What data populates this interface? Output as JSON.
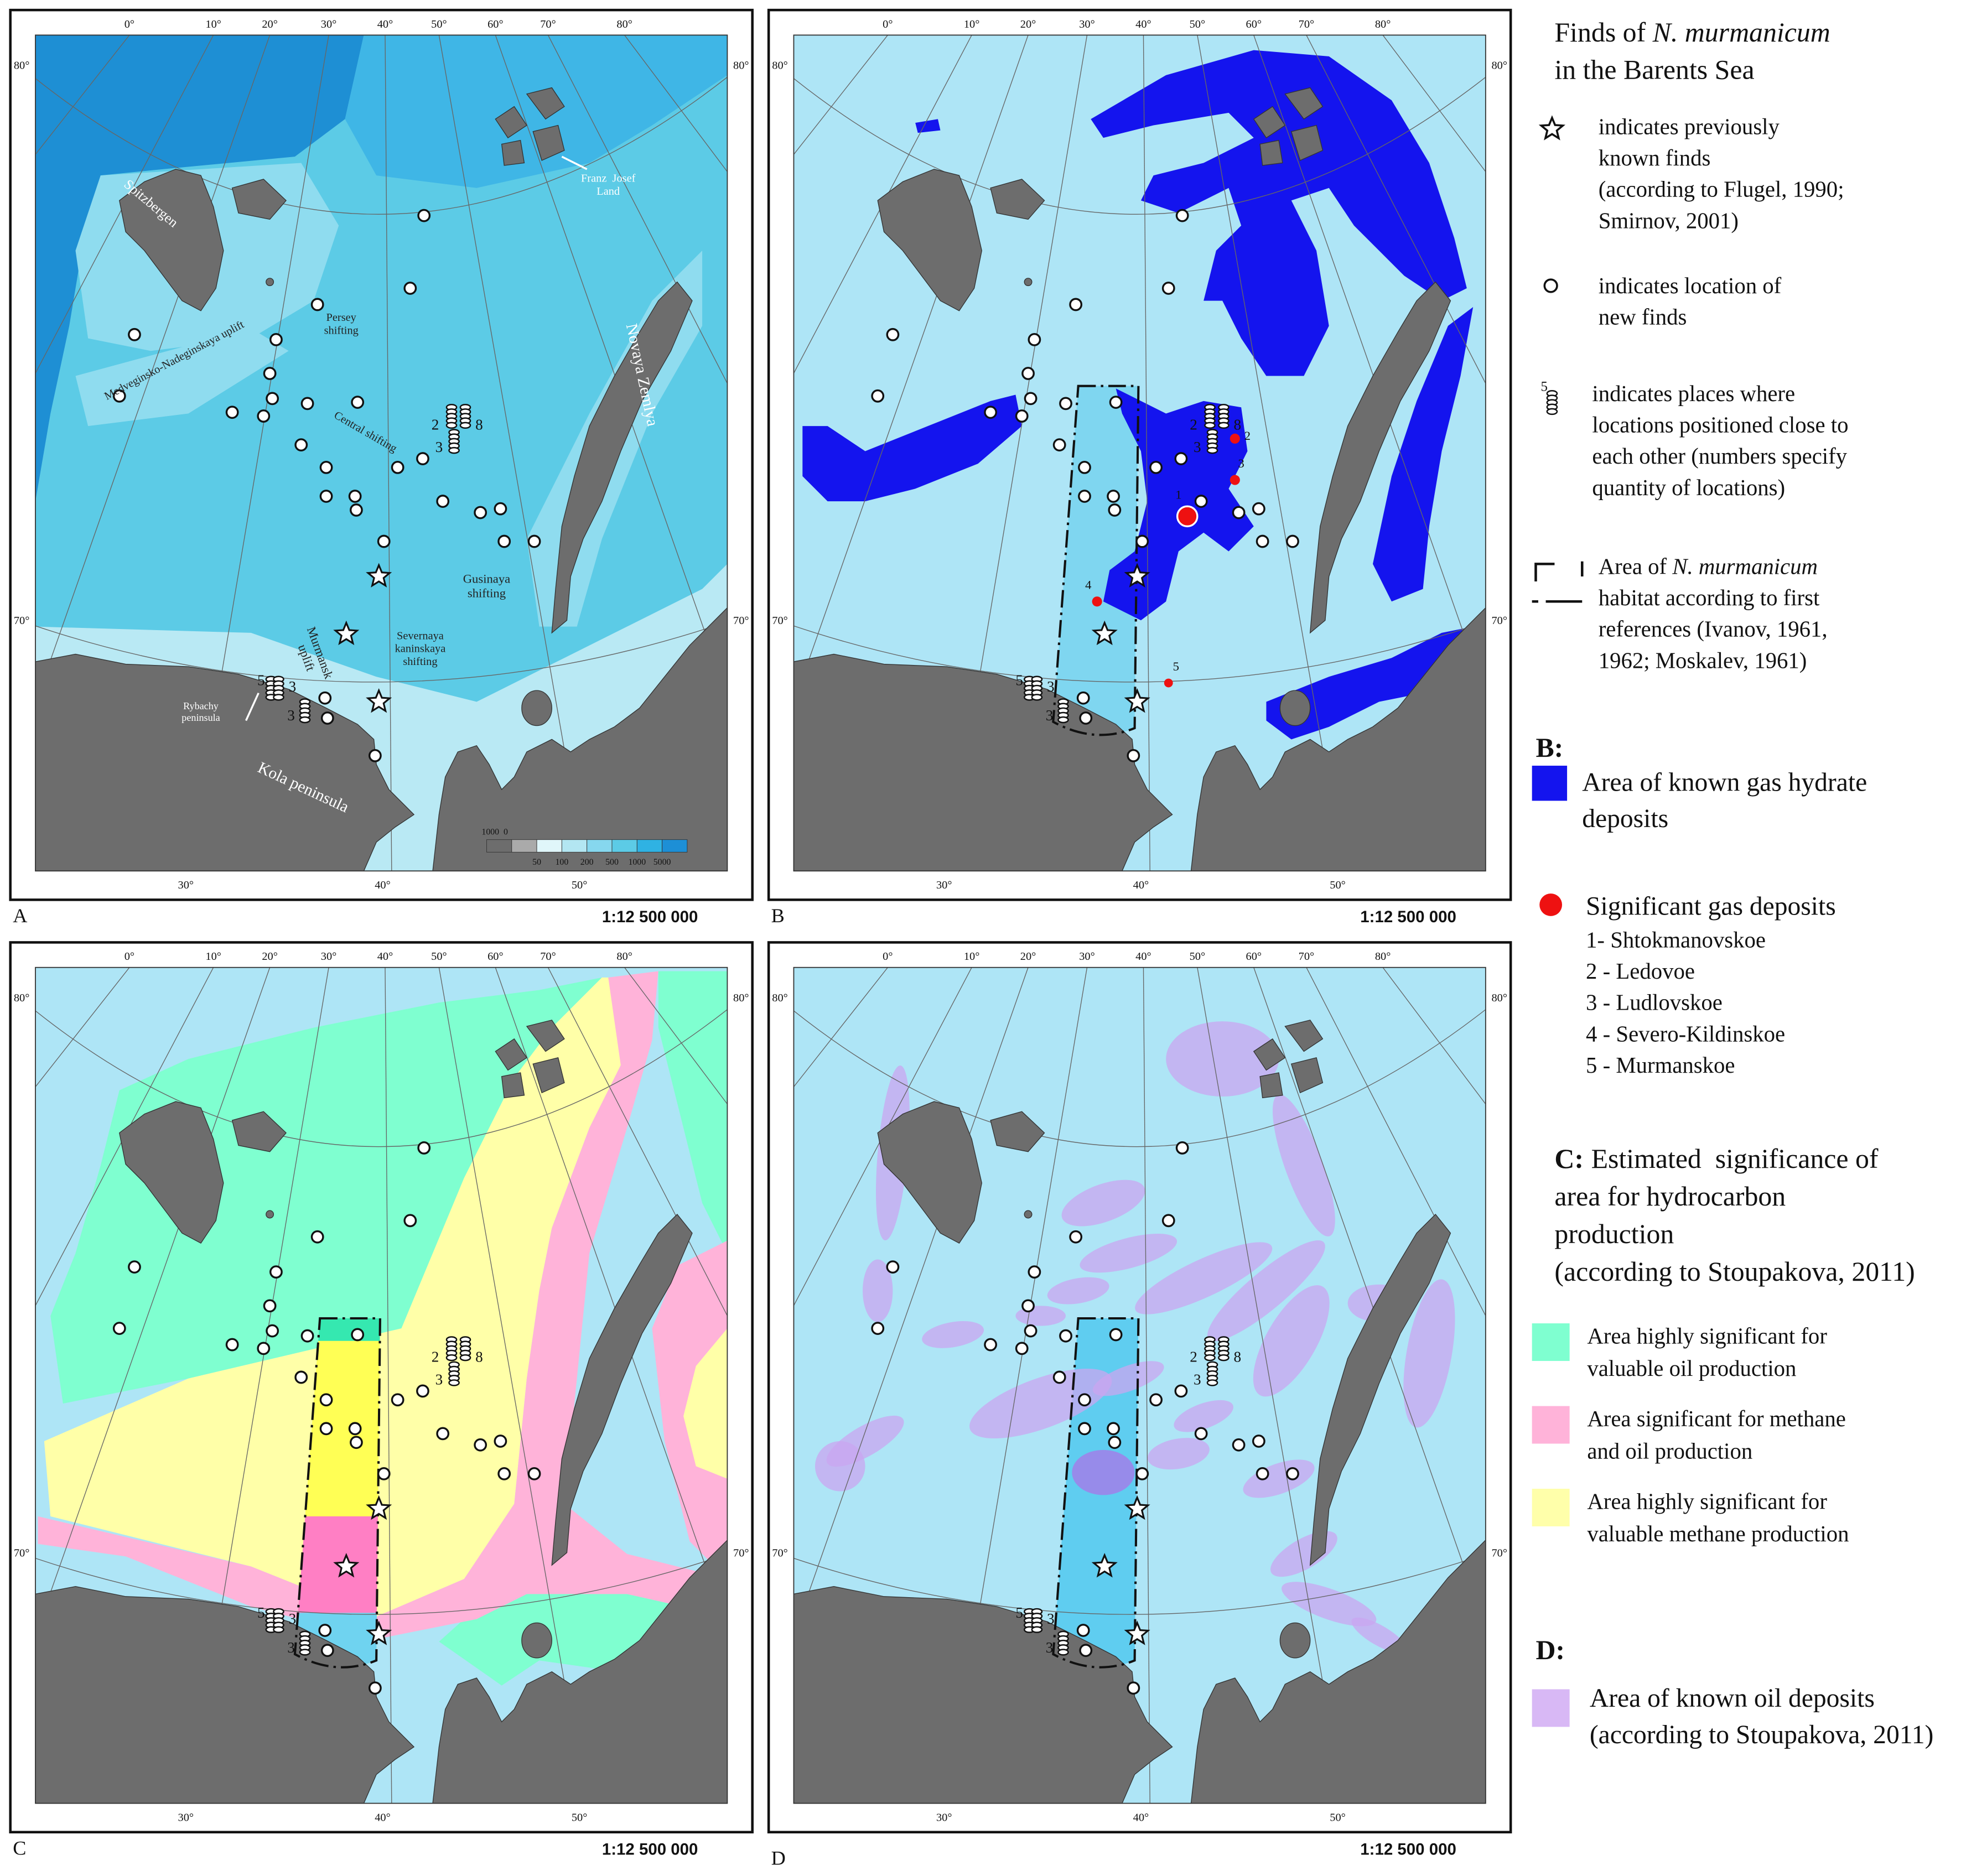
{
  "legend": {
    "title": [
      "Finds of ",
      "N. murmanicum",
      "in the Barents Sea"
    ],
    "star": [
      "indicates previously",
      "known finds",
      "(according to Flugel, 1990;",
      "Smirnov, 2001)"
    ],
    "circle": [
      "indicates location of",
      "new finds"
    ],
    "stack_number": "5",
    "stack": [
      "indicates places where",
      "locations positioned close to",
      "each other (numbers specify",
      "quantity of locations)"
    ],
    "habitat": {
      "prefix": "Area of ",
      "species": "N. murmanicum",
      "lines": [
        "habitat according to first",
        "references (Ivanov, 1961,",
        "1962; Moskalev, 1961)"
      ]
    },
    "b_heading": "B:",
    "hydrate": [
      "Area of known gas hydrate",
      "deposits"
    ],
    "gas_title": "Significant gas deposits",
    "gas_list": [
      "1- Shtokmanovskoe",
      "2 - Ledovoe",
      "3 - Ludlovskoe",
      "4 - Severo-Kildinskoe",
      "5 - Murmanskoe"
    ],
    "c_heading": "C:",
    "c_title": [
      "Estimated  significance of",
      "area for hydrocarbon",
      "production",
      "(according to Stoupakova, 2011)"
    ],
    "green": [
      "Area highly significant for",
      "valuable oil production"
    ],
    "pink": [
      "Area significant for methane",
      "and oil production"
    ],
    "yellow": [
      "Area highly significant for",
      "valuable methane production"
    ],
    "d_heading": "D:",
    "oil": [
      "Area of known oil deposits",
      "(according to Stoupakova, 2011)"
    ]
  },
  "panels": [
    {
      "letter": "A",
      "scale": "1:12 500 000"
    },
    {
      "letter": "B",
      "scale": "1:12 500 000"
    },
    {
      "letter": "C",
      "scale": "1:12 500 000"
    },
    {
      "letter": "D",
      "scale": "1:12 500 000"
    }
  ],
  "graticule": {
    "top": [
      "0°",
      "10°",
      "20°",
      "30°",
      "40°",
      "50°",
      "60°",
      "70°",
      "80°"
    ],
    "lat80": "80°",
    "lat70": "70°",
    "bottom": [
      "30°",
      "40°",
      "50°"
    ]
  },
  "map_labels": [
    {
      "lines": [
        "Spitzbergen"
      ]
    },
    {
      "lines": [
        "Franz  Josef",
        "Land"
      ]
    },
    {
      "lines": [
        "Persey",
        "shifting"
      ]
    },
    {
      "lines": [
        "Medveginsko-Nadeginskaya uplift"
      ]
    },
    {
      "lines": [
        "Central shifting"
      ]
    },
    {
      "lines": [
        "Novaya Zemlya"
      ]
    },
    {
      "lines": [
        "Gusinaya",
        "shifting"
      ]
    },
    {
      "lines": [
        "Murmansk",
        "uplift"
      ]
    },
    {
      "lines": [
        "Severnaya",
        "kaninskaya",
        "shifting"
      ]
    },
    {
      "lines": [
        "Rybachy",
        "peninsula"
      ]
    },
    {
      "lines": [
        "Kola peninsula"
      ]
    }
  ],
  "depth_scale": {
    "zero": "1000  0",
    "depths": [
      "50",
      "100",
      "200",
      "500",
      "1000",
      "5000"
    ]
  },
  "cluster_counts": [
    "2",
    "8",
    "3",
    "5",
    "3",
    "3"
  ],
  "gas_numbers": [
    "1",
    "2",
    "3",
    "4",
    "5"
  ]
}
